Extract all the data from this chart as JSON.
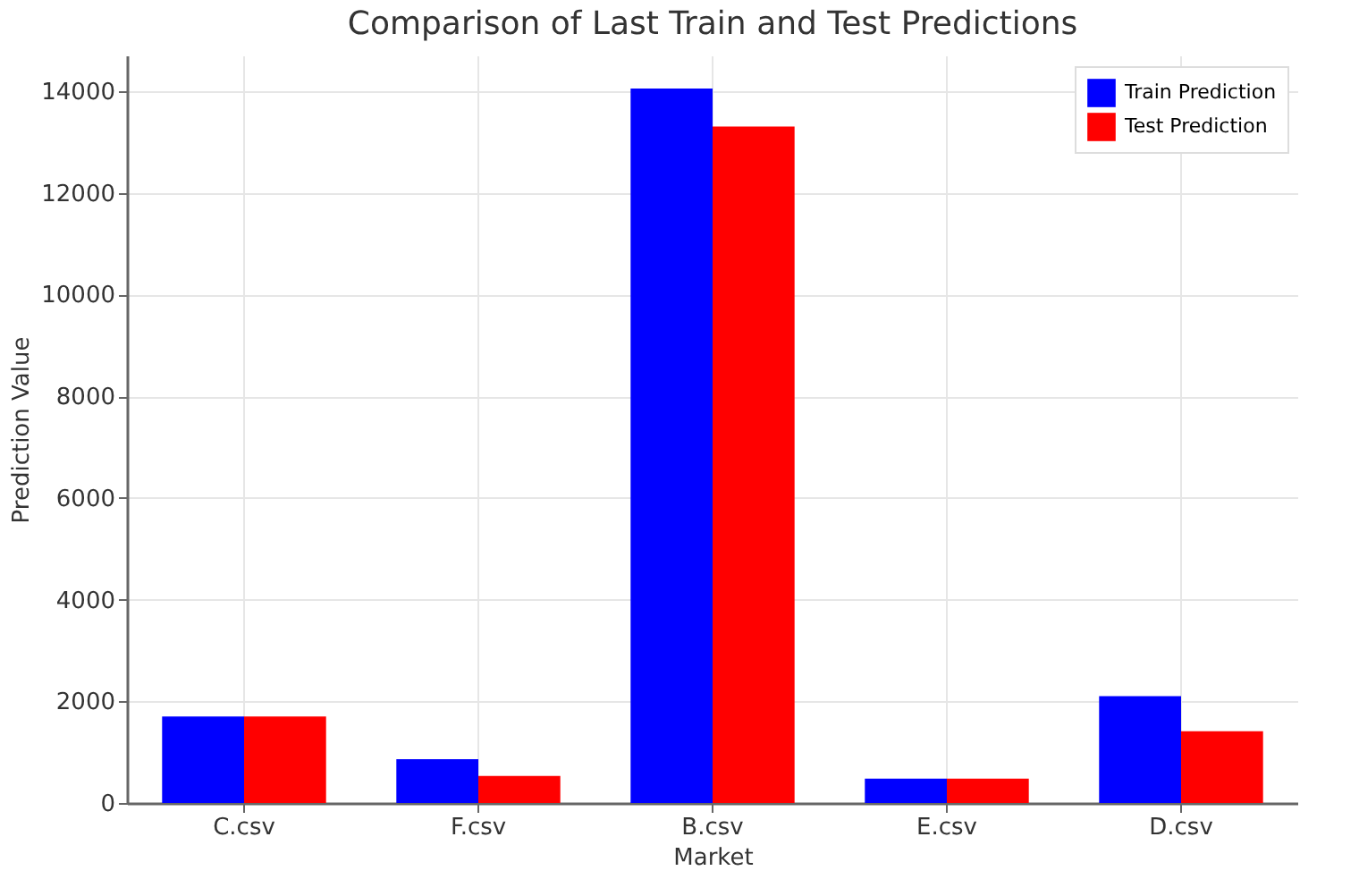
{
  "chart_data": {
    "type": "bar",
    "title": "Comparison of Last Train and Test Predictions",
    "xlabel": "Market",
    "ylabel": "Prediction Value",
    "categories": [
      "C.csv",
      "F.csv",
      "B.csv",
      "E.csv",
      "D.csv"
    ],
    "series": [
      {
        "name": "Train Prediction",
        "color": "#0000ff",
        "values": [
          1700,
          860,
          14050,
          480,
          2100
        ]
      },
      {
        "name": "Test Prediction",
        "color": "#ff0000",
        "values": [
          1700,
          530,
          13300,
          480,
          1410
        ]
      }
    ],
    "ylim": [
      0,
      14700
    ],
    "yticks": [
      0,
      2000,
      4000,
      6000,
      8000,
      10000,
      12000,
      14000
    ],
    "grid": true,
    "legend": "top right"
  }
}
